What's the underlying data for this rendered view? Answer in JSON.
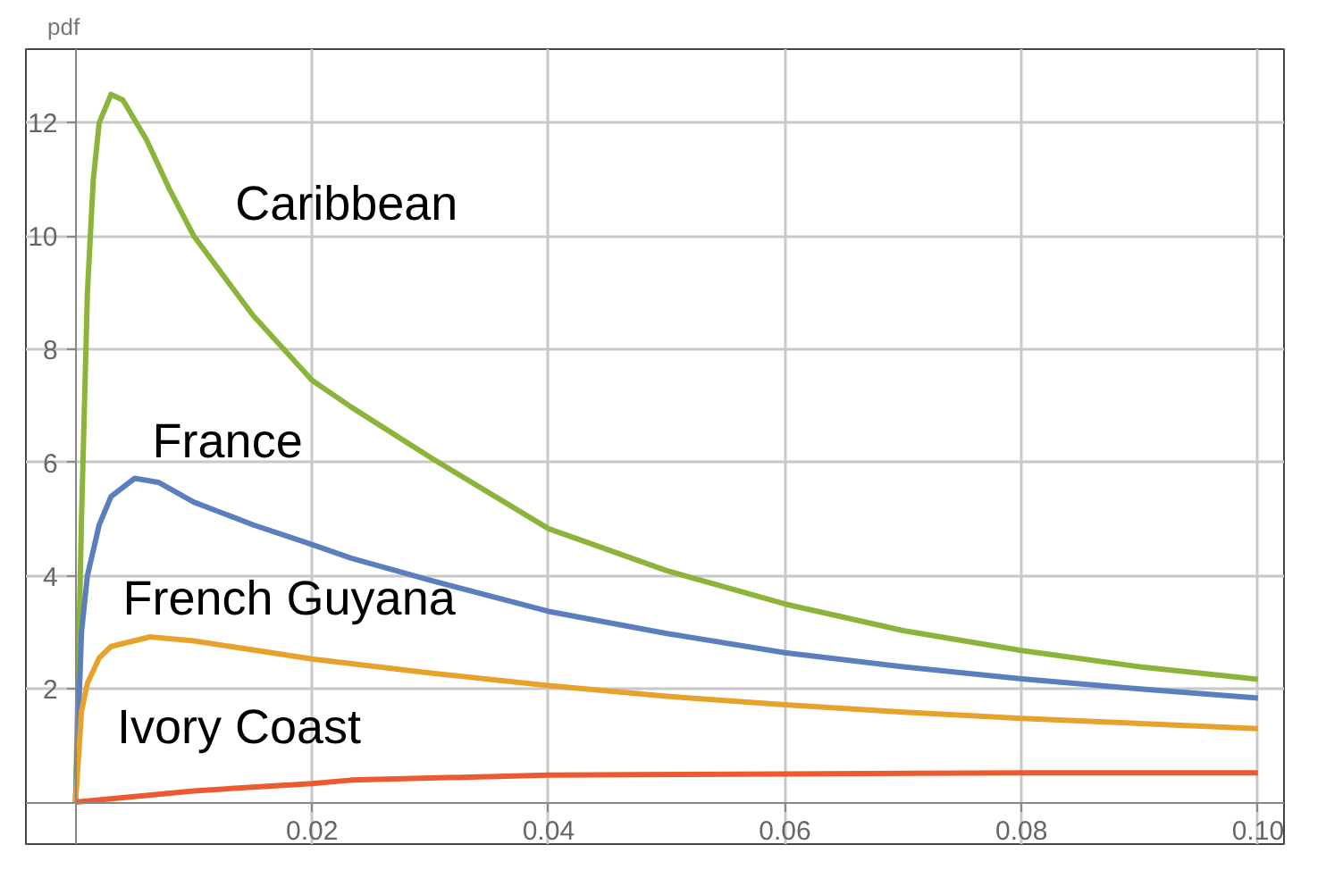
{
  "chart_data": {
    "type": "line",
    "ylabel": "pdf",
    "xlim": [
      -0.0042,
      0.1022
    ],
    "ylim": [
      -0.74,
      13.3
    ],
    "xticks": [
      0.02,
      0.04,
      0.06,
      {
        "value": 0.1,
        "label": "0.10"
      },
      0.08
    ],
    "yticks": [
      2,
      4,
      6,
      8,
      10,
      12
    ],
    "grid": true,
    "series": [
      {
        "name": "Caribbean",
        "color": "#8cb33a",
        "x": [
          0,
          0.0005,
          0.001,
          0.0015,
          0.002,
          0.003,
          0.004,
          0.006,
          0.008,
          0.01,
          0.015,
          0.02,
          0.0233,
          0.03,
          0.04,
          0.05,
          0.06,
          0.07,
          0.08,
          0.09,
          0.1
        ],
        "values": [
          0,
          5,
          9,
          11,
          12,
          12.5,
          12.4,
          11.7,
          10.8,
          10.0,
          8.6,
          7.45,
          6.98,
          6.09,
          4.83,
          4.09,
          3.5,
          3.03,
          2.68,
          2.39,
          2.17
        ]
      },
      {
        "name": "France",
        "color": "#5b7fbe",
        "x": [
          0,
          0.0005,
          0.001,
          0.002,
          0.003,
          0.005,
          0.007,
          0.01,
          0.015,
          0.02,
          0.0233,
          0.03,
          0.04,
          0.05,
          0.06,
          0.07,
          0.08,
          0.09,
          0.1
        ],
        "values": [
          0,
          3,
          4.0,
          4.9,
          5.4,
          5.72,
          5.65,
          5.3,
          4.9,
          4.55,
          4.31,
          3.92,
          3.37,
          2.98,
          2.64,
          2.39,
          2.18,
          2.0,
          1.84
        ]
      },
      {
        "name": "French Guyana",
        "color": "#e7a22c",
        "x": [
          0,
          0.0005,
          0.001,
          0.002,
          0.003,
          0.0063,
          0.01,
          0.02,
          0.03,
          0.04,
          0.05,
          0.06,
          0.07,
          0.08,
          0.09,
          0.1
        ],
        "values": [
          0,
          1.6,
          2.1,
          2.55,
          2.75,
          2.92,
          2.85,
          2.53,
          2.28,
          2.06,
          1.87,
          1.72,
          1.59,
          1.48,
          1.39,
          1.3
        ]
      },
      {
        "name": "Ivory Coast",
        "color": "#ec5a30",
        "x": [
          0,
          0.005,
          0.01,
          0.02,
          0.0233,
          0.04,
          0.06,
          0.08,
          0.1
        ],
        "values": [
          0,
          0.1,
          0.2,
          0.33,
          0.39,
          0.48,
          0.5,
          0.52,
          0.52
        ]
      }
    ]
  }
}
